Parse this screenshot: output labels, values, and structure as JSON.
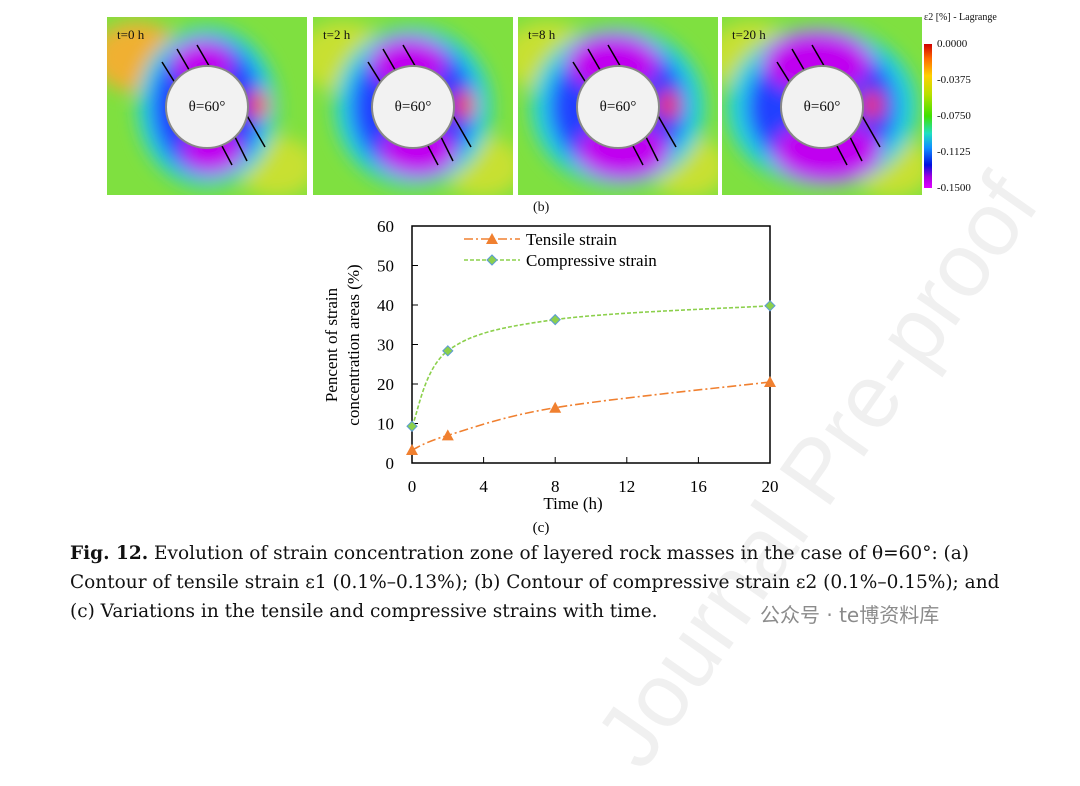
{
  "contours": {
    "panels": [
      {
        "label": "t=0 h",
        "angle": "θ=60°"
      },
      {
        "label": "t=2 h",
        "angle": "θ=60°"
      },
      {
        "label": "t=8 h",
        "angle": "θ=60°"
      },
      {
        "label": "t=20 h",
        "angle": "θ=60°"
      }
    ],
    "colorbar": {
      "title": "ε2 [%] - Lagrange",
      "ticks": [
        "0.0000",
        "-0.0375",
        "-0.0750",
        "-0.1125",
        "-0.1500"
      ]
    },
    "sublabel": "(b)"
  },
  "chart_data": {
    "type": "line",
    "x": [
      0,
      2,
      8,
      20
    ],
    "series": [
      {
        "name": "Tensile strain",
        "values": [
          3.3,
          7.0,
          14.0,
          20.5
        ],
        "color": "#f08030",
        "marker": "triangle"
      },
      {
        "name": "Compressive strain",
        "values": [
          9.3,
          28.4,
          36.3,
          39.8
        ],
        "color": "#8cd04c",
        "marker": "diamond"
      }
    ],
    "xlabel": "Time (h)",
    "ylabel": "Pencent of strain concentration areas (%)",
    "ylabel_lines": [
      "Pencent of strain",
      "concentration areas (%)"
    ],
    "xlim": [
      0,
      20
    ],
    "ylim": [
      0,
      60
    ],
    "xticks": [
      "0",
      "4",
      "8",
      "12",
      "16",
      "20"
    ],
    "yticks": [
      "0",
      "10",
      "20",
      "30",
      "40",
      "50",
      "60"
    ],
    "legend": "top-left",
    "grid": false,
    "sublabel": "(c)"
  },
  "caption": {
    "bold": "Fig. 12.",
    "text": " Evolution of strain concentration zone of layered rock masses in the case of θ=60°: (a) Contour of tensile strain ε1 (0.1%–0.13%); (b) Contour of compressive strain ε2 (0.1%–0.15%); and (c) Variations in the tensile and compressive strains with time."
  },
  "watermark": "Journal Pre-proof",
  "wechat": "公众号 · te博资料库"
}
